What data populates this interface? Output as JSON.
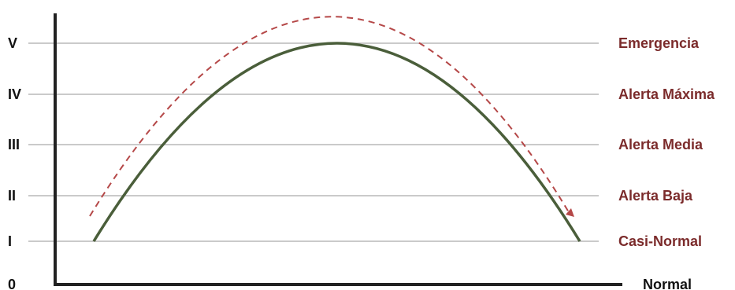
{
  "levels": [
    {
      "roman": "V",
      "name": "Emergencia"
    },
    {
      "roman": "IV",
      "name": "Alerta Máxima"
    },
    {
      "roman": "III",
      "name": "Alerta Media"
    },
    {
      "roman": "II",
      "name": "Alerta Baja"
    },
    {
      "roman": "I",
      "name": "Casi-Normal"
    }
  ],
  "origin_label": "0",
  "x_axis_end_label": "Normal",
  "colors": {
    "level_label": "#7b2b2b",
    "axis_text": "#111111",
    "axis_line": "#222222",
    "gridline": "#b8b8b8",
    "main_curve": "#4a5e3a",
    "dashed_curve": "#b54848"
  }
}
